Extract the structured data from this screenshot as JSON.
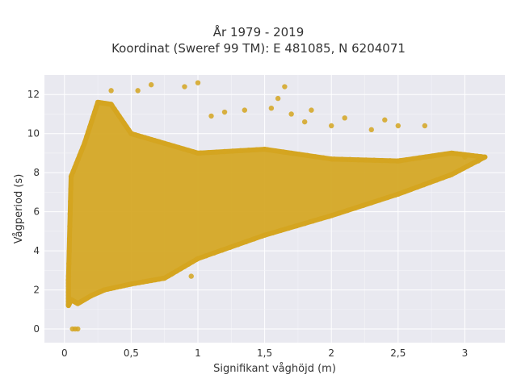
{
  "chart_data": {
    "type": "scatter",
    "title": "År 1979 - 2019",
    "subtitle": "Koordinat (Sweref 99 TM): E 481085, N 6204071",
    "xlabel": "Signifikant våghöjd (m)",
    "ylabel": "Vågperiod (s)",
    "xlim": [
      -0.15,
      3.3
    ],
    "ylim": [
      -0.7,
      13.0
    ],
    "x_ticks": [
      0,
      0.5,
      1,
      1.5,
      2,
      2.5,
      3
    ],
    "x_tick_labels": [
      "0",
      "0,5",
      "1",
      "1,5",
      "2",
      "2,5",
      "3"
    ],
    "y_ticks": [
      0,
      2,
      4,
      6,
      8,
      10,
      12
    ],
    "y_tick_labels": [
      "0",
      "2",
      "4",
      "6",
      "8",
      "10",
      "12"
    ],
    "grid": true,
    "background": "#e9e9f0",
    "marker_color": "#d4a520",
    "description_of_distribution": "dense wedge-shaped cloud",
    "points_outline": [
      [
        0.03,
        1.2
      ],
      [
        0.05,
        1.5
      ],
      [
        0.1,
        1.3
      ],
      [
        0.2,
        1.7
      ],
      [
        0.3,
        2.0
      ],
      [
        0.5,
        2.3
      ],
      [
        0.75,
        2.6
      ],
      [
        1.0,
        3.6
      ],
      [
        1.5,
        4.8
      ],
      [
        2.0,
        5.8
      ],
      [
        2.5,
        6.9
      ],
      [
        2.9,
        7.9
      ],
      [
        3.15,
        8.8
      ],
      [
        2.9,
        9.0
      ],
      [
        2.5,
        8.6
      ],
      [
        2.0,
        8.7
      ],
      [
        1.5,
        9.2
      ],
      [
        1.0,
        9.0
      ],
      [
        0.7,
        9.6
      ],
      [
        0.5,
        10.0
      ],
      [
        0.35,
        11.5
      ],
      [
        0.25,
        11.6
      ],
      [
        0.15,
        9.5
      ],
      [
        0.05,
        7.8
      ],
      [
        0.03,
        2.5
      ]
    ],
    "sparse_points": [
      [
        0.06,
        0.0
      ],
      [
        0.08,
        0.0
      ],
      [
        0.1,
        0.0
      ],
      [
        0.55,
        12.2
      ],
      [
        0.65,
        12.5
      ],
      [
        0.9,
        12.4
      ],
      [
        1.0,
        12.6
      ],
      [
        0.35,
        12.2
      ],
      [
        1.65,
        12.4
      ],
      [
        1.6,
        11.8
      ],
      [
        1.55,
        11.3
      ],
      [
        1.35,
        11.2
      ],
      [
        1.2,
        11.1
      ],
      [
        1.85,
        11.2
      ],
      [
        2.1,
        10.8
      ],
      [
        2.4,
        10.7
      ],
      [
        2.5,
        10.4
      ],
      [
        2.7,
        10.4
      ],
      [
        2.3,
        10.2
      ],
      [
        1.8,
        10.6
      ],
      [
        2.0,
        10.4
      ],
      [
        0.8,
        2.8
      ],
      [
        0.95,
        2.7
      ],
      [
        1.1,
        10.9
      ],
      [
        1.7,
        11.0
      ],
      [
        3.0,
        8.8
      ],
      [
        3.1,
        8.6
      ],
      [
        3.15,
        8.8
      ]
    ]
  }
}
